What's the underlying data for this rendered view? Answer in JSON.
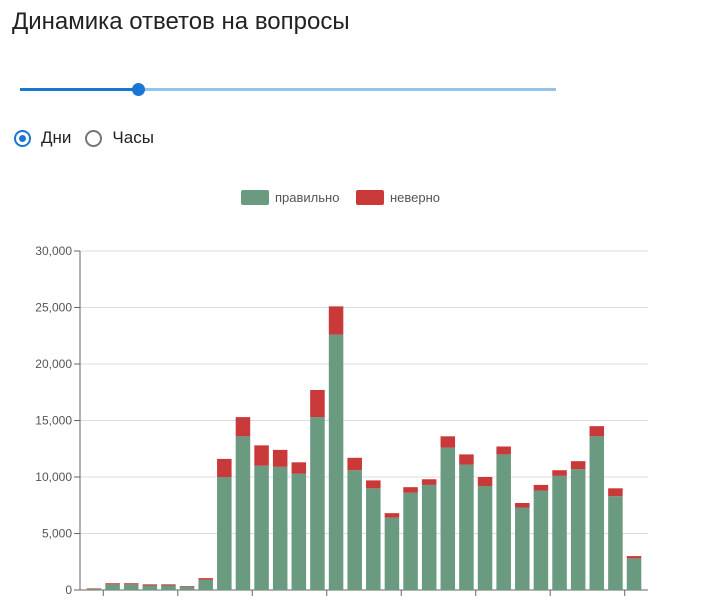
{
  "title": "Динамика ответов на вопросы",
  "slider": {
    "value_fraction": 0.22,
    "colors": {
      "active": "#1976d2",
      "rail": "#90c4ec"
    }
  },
  "granularity": {
    "options": [
      {
        "label": "Дни",
        "checked": true
      },
      {
        "label": "Часы",
        "checked": false
      }
    ]
  },
  "chart_data": {
    "type": "bar",
    "stacked": true,
    "legend_position": "top-center",
    "grid": true,
    "ylim": [
      0,
      30000
    ],
    "yticks": [
      "0",
      "5,000",
      "10,000",
      "15,000",
      "20,000",
      "25,000",
      "30,000"
    ],
    "series": [
      {
        "name": "правильно",
        "color": "#6a9a80",
        "values": [
          100,
          500,
          500,
          400,
          400,
          300,
          900,
          10000,
          13600,
          11000,
          10900,
          10300,
          15300,
          22600,
          10600,
          9000,
          6400,
          8600,
          9300,
          12600,
          11100,
          9200,
          12000,
          7300,
          8800,
          10100,
          10700,
          13600,
          8300,
          2800
        ]
      },
      {
        "name": "неверно",
        "color": "#c9393a",
        "values": [
          50,
          100,
          100,
          100,
          100,
          50,
          150,
          1600,
          1700,
          1800,
          1500,
          1000,
          2400,
          2500,
          1100,
          700,
          400,
          500,
          500,
          1000,
          900,
          800,
          700,
          400,
          500,
          500,
          700,
          900,
          700,
          200
        ]
      }
    ]
  }
}
